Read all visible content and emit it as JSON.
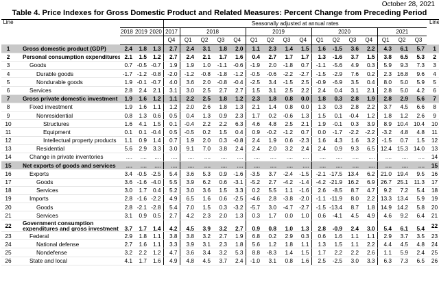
{
  "header": {
    "date": "October 28, 2021",
    "title": "Table 4. Price Indexes for Gross Domestic Product and Related Measures: Percent Change from Preceding Period",
    "seasonal_note": "Seasonally adjusted at annual rates",
    "line_label": "Line",
    "annual_years": [
      "2018",
      "2019",
      "2020"
    ],
    "quarter_years": [
      "2017",
      "2018",
      "2019",
      "2020",
      "2021"
    ],
    "quarters": [
      "Q4",
      "Q1",
      "Q2",
      "Q3",
      "Q4",
      "Q1",
      "Q2",
      "Q3",
      "Q4",
      "Q1",
      "Q2",
      "Q3",
      "Q4",
      "Q1",
      "Q2",
      "Q3"
    ]
  },
  "rows": [
    {
      "line": "1",
      "label": "Gross domestic product (GDP)",
      "values": [
        "2.4",
        "1.8",
        "1.3",
        "2.7",
        "2.4",
        "3.1",
        "1.8",
        "2.0",
        "1.1",
        "2.3",
        "1.4",
        "1.5",
        "1.6",
        "-1.5",
        "3.6",
        "2.2",
        "4.3",
        "6.1",
        "5.7"
      ]
    },
    {
      "line": "2",
      "label": "Personal consumption expenditures",
      "values": [
        "2.1",
        "1.5",
        "1.2",
        "2.7",
        "2.4",
        "2.1",
        "1.7",
        "1.6",
        "0.4",
        "2.7",
        "1.7",
        "1.7",
        "1.3",
        "-1.6",
        "3.7",
        "1.5",
        "3.8",
        "6.5",
        "5.3"
      ]
    },
    {
      "line": "3",
      "label": "Goods",
      "values": [
        "0.7",
        "-0.5",
        "-0.7",
        "1.9",
        "1.9",
        "1.0",
        "-1.1",
        "-0.6",
        "-1.9",
        "2.0",
        "-1.8",
        "0.7",
        "-1.1",
        "-5.6",
        "4.9",
        "0.3",
        "5.9",
        "9.3",
        "7.3"
      ]
    },
    {
      "line": "4",
      "label": "Durable goods",
      "values": [
        "-1.7",
        "-1.2",
        "-0.8",
        "-2.0",
        "-1.2",
        "-0.8",
        "-1.8",
        "-1.2",
        "-0.5",
        "-0.6",
        "-2.2",
        "-2.7",
        "-1.5",
        "-2.9",
        "7.6",
        "0.2",
        "2.3",
        "16.8",
        "9.6"
      ]
    },
    {
      "line": "5",
      "label": "Nondurable goods",
      "values": [
        "1.9",
        "-0.1",
        "-0.7",
        "4.0",
        "3.6",
        "2.0",
        "-0.8",
        "-0.4",
        "-2.5",
        "3.4",
        "-1.5",
        "2.5",
        "-0.9",
        "-6.9",
        "3.5",
        "0.4",
        "8.0",
        "5.0",
        "5.9"
      ]
    },
    {
      "line": "6",
      "label": "Services",
      "values": [
        "2.8",
        "2.4",
        "2.1",
        "3.1",
        "3.0",
        "2.5",
        "2.7",
        "2.7",
        "1.5",
        "3.1",
        "2.5",
        "2.2",
        "2.4",
        "0.4",
        "3.1",
        "2.1",
        "2.8",
        "5.0",
        "4.2"
      ]
    },
    {
      "line": "7",
      "label": "Gross private domestic investment",
      "values": [
        "1.9",
        "1.6",
        "1.2",
        "1.1",
        "2.2",
        "2.5",
        "1.8",
        "1.2",
        "2.3",
        "1.8",
        "0.8",
        "0.0",
        "1.8",
        "0.3",
        "2.8",
        "1.9",
        "2.8",
        "2.9",
        "5.6"
      ]
    },
    {
      "line": "8",
      "label": "Fixed investment",
      "values": [
        "1.9",
        "1.6",
        "1.1",
        "1.2",
        "2.0",
        "2.6",
        "1.8",
        "1.3",
        "2.1",
        "1.4",
        "0.8",
        "0.0",
        "1.3",
        "0.3",
        "2.8",
        "2.2",
        "3.7",
        "4.5",
        "6.6"
      ]
    },
    {
      "line": "9",
      "label": "Nonresidential",
      "values": [
        "0.8",
        "1.3",
        "0.6",
        "0.5",
        "0.4",
        "1.3",
        "0.9",
        "2.3",
        "1.7",
        "0.2",
        "-0.6",
        "1.3",
        "1.5",
        "0.1",
        "-0.4",
        "1.2",
        "1.8",
        "1.2",
        "2.6"
      ]
    },
    {
      "line": "10",
      "label": "Structures",
      "values": [
        "1.6",
        "4.1",
        "1.5",
        "0.1",
        "-0.4",
        "2.2",
        "2.2",
        "6.3",
        "4.6",
        "4.8",
        "2.5",
        "2.1",
        "1.9",
        "-0.1",
        "0.3",
        "3.9",
        "8.9",
        "10.4",
        "10.4"
      ]
    },
    {
      "line": "11",
      "label": "Equipment",
      "values": [
        "0.1",
        "0.1",
        "-0.4",
        "0.5",
        "-0.5",
        "0.2",
        "1.5",
        "0.4",
        "0.9",
        "-0.2",
        "-1.2",
        "0.7",
        "0.0",
        "-1.7",
        "-2.2",
        "-2.2",
        "-3.2",
        "4.8",
        "4.8"
      ]
    },
    {
      "line": "12",
      "label": "Intellectual property products",
      "values": [
        "1.1",
        "0.9",
        "1.4",
        "0.7",
        "1.9",
        "2.0",
        "0.3",
        "-0.8",
        "2.4",
        "1.9",
        "0.6",
        "-2.3",
        "1.6",
        "4.3",
        "1.6",
        "3.2",
        "-1.5",
        "0.7",
        "1.5"
      ]
    },
    {
      "line": "13",
      "label": "Residential",
      "values": [
        "5.6",
        "2.9",
        "3.3",
        "3.0",
        "9.1",
        "7.0",
        "3.8",
        "2.4",
        "2.4",
        "2.0",
        "3.2",
        "2.4",
        "2.4",
        "0.9",
        "9.3",
        "6.5",
        "12.4",
        "15.3",
        "14.0"
      ]
    },
    {
      "line": "14",
      "label": "Change in private inventories",
      "values": [
        "....",
        "....",
        "....",
        "....",
        "....",
        "....",
        "....",
        "....",
        "....",
        "....",
        "....",
        "....",
        "....",
        "....",
        "....",
        "....",
        "....",
        "....",
        "...."
      ]
    },
    {
      "line": "15",
      "label": "Net exports of goods and services",
      "values": [
        "....",
        "....",
        "....",
        "....",
        "....",
        "....",
        "....",
        "....",
        "....",
        "....",
        "....",
        "....",
        "....",
        "....",
        "....",
        "....",
        "....",
        "....",
        "...."
      ]
    },
    {
      "line": "16",
      "label": "Exports",
      "values": [
        "3.4",
        "-0.5",
        "-2.5",
        "5.4",
        "3.6",
        "5.3",
        "0.9",
        "-1.6",
        "-3.5",
        "3.7",
        "-2.4",
        "-1.5",
        "-2.1",
        "-17.5",
        "13.4",
        "6.2",
        "21.0",
        "19.4",
        "9.5"
      ]
    },
    {
      "line": "17",
      "label": "Goods",
      "values": [
        "3.6",
        "-1.6",
        "-4.0",
        "5.5",
        "3.9",
        "6.2",
        "0.6",
        "-3.1",
        "-5.2",
        "2.7",
        "-4.2",
        "-1.4",
        "-4.2",
        "-21.9",
        "16.2",
        "6.9",
        "26.7",
        "25.1",
        "11.3"
      ]
    },
    {
      "line": "18",
      "label": "Services",
      "values": [
        "3.0",
        "1.7",
        "0.4",
        "5.2",
        "3.0",
        "3.6",
        "1.5",
        "3.3",
        "0.2",
        "5.5",
        "1.1",
        "-1.6",
        "2.6",
        "-8.5",
        "8.7",
        "4.7",
        "9.2",
        "7.2",
        "5.4"
      ]
    },
    {
      "line": "19",
      "label": "Imports",
      "values": [
        "2.8",
        "-1.6",
        "-2.2",
        "4.9",
        "6.5",
        "1.6",
        "0.6",
        "-2.5",
        "-4.6",
        "2.8",
        "-3.8",
        "-2.0",
        "-1.1",
        "-11.9",
        "8.0",
        "2.2",
        "13.3",
        "13.4",
        "5.9"
      ]
    },
    {
      "line": "20",
      "label": "Goods",
      "values": [
        "2.8",
        "-2.1",
        "-2.8",
        "5.4",
        "7.0",
        "1.5",
        "0.3",
        "-3.2",
        "-5.7",
        "3.0",
        "-4.7",
        "-2.7",
        "-1.5",
        "-13.4",
        "8.7",
        "1.8",
        "14.9",
        "14.2",
        "5.8"
      ]
    },
    {
      "line": "21",
      "label": "Services",
      "values": [
        "3.1",
        "0.9",
        "0.5",
        "2.7",
        "4.2",
        "2.3",
        "2.0",
        "1.3",
        "0.3",
        "1.7",
        "0.0",
        "1.0",
        "0.6",
        "-4.1",
        "4.5",
        "4.9",
        "4.6",
        "9.2",
        "6.4"
      ]
    },
    {
      "line": "22",
      "label": "Government consumption expenditures and gross investment",
      "label_lines": [
        "Government consumption",
        "expenditures and gross investment"
      ],
      "values": [
        "3.7",
        "1.7",
        "1.4",
        "4.2",
        "4.5",
        "3.9",
        "3.2",
        "2.7",
        "0.9",
        "0.8",
        "1.0",
        "1.3",
        "2.8",
        "-0.9",
        "2.4",
        "3.0",
        "5.4",
        "6.1",
        "5.4"
      ]
    },
    {
      "line": "23",
      "label": "Federal",
      "values": [
        "2.9",
        "1.8",
        "1.1",
        "3.8",
        "3.8",
        "3.2",
        "2.7",
        "1.9",
        "6.8",
        "0.2",
        "2.9",
        "0.3",
        "0.6",
        "1.6",
        "1.1",
        "1.1",
        "2.9",
        "3.7",
        "3.5"
      ]
    },
    {
      "line": "24",
      "label": "National defense",
      "values": [
        "2.7",
        "1.6",
        "1.1",
        "3.3",
        "3.9",
        "3.1",
        "2.3",
        "1.8",
        "5.6",
        "1.2",
        "1.8",
        "1.1",
        "1.3",
        "1.5",
        "1.1",
        "2.2",
        "4.4",
        "4.5",
        "4.8"
      ]
    },
    {
      "line": "25",
      "label": "Nondefense",
      "values": [
        "3.2",
        "2.2",
        "1.2",
        "4.7",
        "3.6",
        "3.4",
        "3.2",
        "5.3",
        "8.8",
        "-8.3",
        "1.4",
        "1.5",
        "1.7",
        "2.2",
        "2.2",
        "2.6",
        "1.1",
        "5.9",
        "2.4"
      ]
    },
    {
      "line": "26",
      "label": "State and local",
      "values": [
        "4.1",
        "1.7",
        "1.6",
        "4.9",
        "4.8",
        "4.5",
        "3.7",
        "2.4",
        "-1.0",
        "3.1",
        "0.8",
        "1.6",
        "2.5",
        "-2.5",
        "3.0",
        "3.3",
        "6.3",
        "7.3",
        "6.5"
      ]
    }
  ]
}
